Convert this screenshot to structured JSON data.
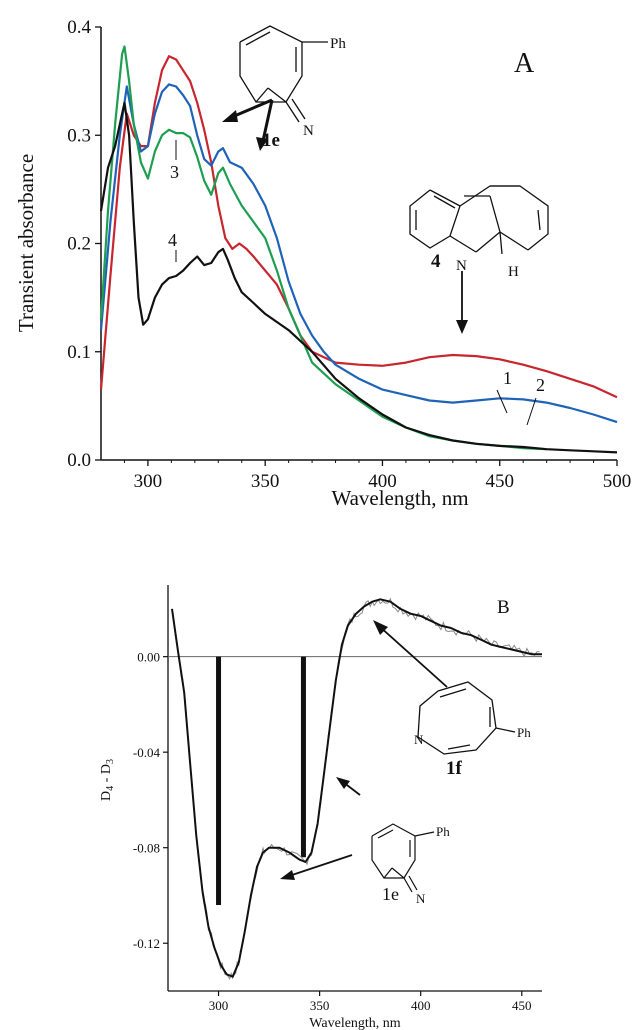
{
  "chart_data": [
    {
      "panel": "A",
      "type": "line",
      "panel_label": "A",
      "xlabel": "Wavelength, nm",
      "ylabel": "Transient absorbance",
      "xlim": [
        280,
        500
      ],
      "ylim": [
        0,
        0.4
      ],
      "x_ticks": [
        300,
        350,
        400,
        450,
        500
      ],
      "y_ticks": [
        0.0,
        0.1,
        0.2,
        0.3,
        0.4
      ],
      "y_tick_labels": [
        "0.0",
        "0.1",
        "0.2",
        "0.3",
        "0.4"
      ],
      "grid": false,
      "series": [
        {
          "label": "1",
          "color": "#c8262f",
          "points": [
            [
              280,
              0.065
            ],
            [
              284,
              0.17
            ],
            [
              288,
              0.27
            ],
            [
              291,
              0.32
            ],
            [
              294,
              0.3
            ],
            [
              297,
              0.29
            ],
            [
              300,
              0.29
            ],
            [
              303,
              0.33
            ],
            [
              306,
              0.36
            ],
            [
              309,
              0.373
            ],
            [
              312,
              0.37
            ],
            [
              315,
              0.36
            ],
            [
              318,
              0.35
            ],
            [
              321,
              0.33
            ],
            [
              324,
              0.305
            ],
            [
              327,
              0.275
            ],
            [
              330,
              0.235
            ],
            [
              333,
              0.205
            ],
            [
              336,
              0.195
            ],
            [
              339,
              0.2
            ],
            [
              342,
              0.195
            ],
            [
              345,
              0.188
            ],
            [
              350,
              0.175
            ],
            [
              355,
              0.162
            ],
            [
              360,
              0.14
            ],
            [
              365,
              0.115
            ],
            [
              370,
              0.1
            ],
            [
              380,
              0.09
            ],
            [
              390,
              0.088
            ],
            [
              400,
              0.087
            ],
            [
              410,
              0.09
            ],
            [
              420,
              0.095
            ],
            [
              430,
              0.097
            ],
            [
              440,
              0.096
            ],
            [
              450,
              0.093
            ],
            [
              460,
              0.088
            ],
            [
              470,
              0.082
            ],
            [
              480,
              0.075
            ],
            [
              490,
              0.068
            ],
            [
              500,
              0.058
            ]
          ]
        },
        {
          "label": "2",
          "color": "#1f63b8",
          "points": [
            [
              280,
              0.12
            ],
            [
              284,
              0.22
            ],
            [
              288,
              0.3
            ],
            [
              291,
              0.345
            ],
            [
              294,
              0.31
            ],
            [
              297,
              0.285
            ],
            [
              300,
              0.29
            ],
            [
              303,
              0.32
            ],
            [
              306,
              0.34
            ],
            [
              309,
              0.347
            ],
            [
              312,
              0.345
            ],
            [
              315,
              0.337
            ],
            [
              318,
              0.327
            ],
            [
              321,
              0.3
            ],
            [
              324,
              0.278
            ],
            [
              327,
              0.272
            ],
            [
              330,
              0.285
            ],
            [
              332,
              0.288
            ],
            [
              335,
              0.275
            ],
            [
              340,
              0.27
            ],
            [
              345,
              0.255
            ],
            [
              350,
              0.235
            ],
            [
              355,
              0.205
            ],
            [
              360,
              0.165
            ],
            [
              365,
              0.135
            ],
            [
              370,
              0.115
            ],
            [
              375,
              0.1
            ],
            [
              380,
              0.088
            ],
            [
              390,
              0.075
            ],
            [
              400,
              0.065
            ],
            [
              410,
              0.06
            ],
            [
              420,
              0.055
            ],
            [
              430,
              0.053
            ],
            [
              440,
              0.055
            ],
            [
              450,
              0.057
            ],
            [
              460,
              0.056
            ],
            [
              470,
              0.053
            ],
            [
              480,
              0.048
            ],
            [
              490,
              0.042
            ],
            [
              500,
              0.035
            ]
          ]
        },
        {
          "label": "3",
          "color": "#1e9e50",
          "points": [
            [
              280,
              0.13
            ],
            [
              283,
              0.23
            ],
            [
              286,
              0.31
            ],
            [
              289,
              0.375
            ],
            [
              290,
              0.382
            ],
            [
              292,
              0.35
            ],
            [
              294,
              0.31
            ],
            [
              297,
              0.275
            ],
            [
              300,
              0.26
            ],
            [
              303,
              0.285
            ],
            [
              306,
              0.3
            ],
            [
              309,
              0.305
            ],
            [
              312,
              0.302
            ],
            [
              315,
              0.302
            ],
            [
              318,
              0.298
            ],
            [
              321,
              0.28
            ],
            [
              324,
              0.258
            ],
            [
              327,
              0.245
            ],
            [
              330,
              0.265
            ],
            [
              332,
              0.27
            ],
            [
              335,
              0.255
            ],
            [
              340,
              0.235
            ],
            [
              345,
              0.22
            ],
            [
              350,
              0.205
            ],
            [
              355,
              0.175
            ],
            [
              360,
              0.14
            ],
            [
              365,
              0.115
            ],
            [
              370,
              0.09
            ],
            [
              380,
              0.07
            ],
            [
              390,
              0.055
            ],
            [
              400,
              0.04
            ],
            [
              410,
              0.03
            ],
            [
              420,
              0.022
            ],
            [
              430,
              0.018
            ],
            [
              440,
              0.015
            ],
            [
              450,
              0.013
            ],
            [
              460,
              0.011
            ],
            [
              470,
              0.01
            ]
          ]
        },
        {
          "label": "4",
          "color": "#111111",
          "points": [
            [
              280,
              0.23
            ],
            [
              283,
              0.27
            ],
            [
              286,
              0.29
            ],
            [
              288,
              0.31
            ],
            [
              290,
              0.33
            ],
            [
              292,
              0.3
            ],
            [
              294,
              0.22
            ],
            [
              296,
              0.15
            ],
            [
              298,
              0.125
            ],
            [
              300,
              0.13
            ],
            [
              303,
              0.15
            ],
            [
              306,
              0.162
            ],
            [
              309,
              0.168
            ],
            [
              312,
              0.17
            ],
            [
              315,
              0.175
            ],
            [
              318,
              0.182
            ],
            [
              321,
              0.188
            ],
            [
              324,
              0.18
            ],
            [
              327,
              0.182
            ],
            [
              330,
              0.192
            ],
            [
              332,
              0.195
            ],
            [
              334,
              0.185
            ],
            [
              337,
              0.168
            ],
            [
              340,
              0.155
            ],
            [
              345,
              0.145
            ],
            [
              350,
              0.135
            ],
            [
              360,
              0.12
            ],
            [
              370,
              0.1
            ],
            [
              380,
              0.075
            ],
            [
              390,
              0.057
            ],
            [
              400,
              0.042
            ],
            [
              410,
              0.03
            ],
            [
              420,
              0.023
            ],
            [
              430,
              0.018
            ],
            [
              440,
              0.015
            ],
            [
              450,
              0.013
            ],
            [
              460,
              0.012
            ],
            [
              470,
              0.01
            ],
            [
              480,
              0.009
            ],
            [
              490,
              0.008
            ],
            [
              500,
              0.007
            ]
          ]
        }
      ],
      "annotations": [
        {
          "text": "1e",
          "target": "molecule label"
        },
        {
          "text": "4",
          "target": "molecule label"
        },
        {
          "text": "Ph",
          "target": "substituent"
        },
        {
          "text": "N",
          "target": "atom"
        },
        {
          "text": "H",
          "target": "atom"
        }
      ]
    },
    {
      "panel": "B",
      "type": "line",
      "panel_label": "B",
      "xlabel": "Wavelength, nm",
      "ylabel": "D4 - D3",
      "xlim": [
        275,
        460
      ],
      "ylim": [
        -0.14,
        0.03
      ],
      "x_ticks": [
        300,
        350,
        400,
        450
      ],
      "y_ticks": [
        0.0,
        -0.04,
        -0.08,
        -0.12
      ],
      "y_tick_labels": [
        "0.00",
        "-0.04",
        "-0.08",
        "-0.12"
      ],
      "grid": false,
      "zero_line": true,
      "series": [
        {
          "label": "smoothed",
          "color": "#111111",
          "points": [
            [
              277,
              0.02
            ],
            [
              280,
              0.002
            ],
            [
              283,
              -0.015
            ],
            [
              286,
              -0.045
            ],
            [
              289,
              -0.075
            ],
            [
              292,
              -0.098
            ],
            [
              295,
              -0.113
            ],
            [
              298,
              -0.122
            ],
            [
              301,
              -0.129
            ],
            [
              304,
              -0.133
            ],
            [
              307,
              -0.134
            ],
            [
              310,
              -0.128
            ],
            [
              313,
              -0.115
            ],
            [
              316,
              -0.1
            ],
            [
              319,
              -0.088
            ],
            [
              322,
              -0.082
            ],
            [
              325,
              -0.08
            ],
            [
              330,
              -0.08
            ],
            [
              335,
              -0.082
            ],
            [
              340,
              -0.085
            ],
            [
              343,
              -0.086
            ],
            [
              346,
              -0.082
            ],
            [
              349,
              -0.07
            ],
            [
              352,
              -0.05
            ],
            [
              355,
              -0.03
            ],
            [
              358,
              -0.01
            ],
            [
              361,
              0.005
            ],
            [
              364,
              0.013
            ],
            [
              368,
              0.018
            ],
            [
              372,
              0.021
            ],
            [
              376,
              0.023
            ],
            [
              380,
              0.024
            ],
            [
              385,
              0.023
            ],
            [
              390,
              0.02
            ],
            [
              395,
              0.018
            ],
            [
              400,
              0.017
            ],
            [
              405,
              0.015
            ],
            [
              410,
              0.013
            ],
            [
              415,
              0.012
            ],
            [
              420,
              0.01
            ],
            [
              425,
              0.009
            ],
            [
              430,
              0.007
            ],
            [
              435,
              0.005
            ],
            [
              440,
              0.004
            ],
            [
              445,
              0.003
            ],
            [
              450,
              0.002
            ],
            [
              455,
              0.001
            ],
            [
              460,
              0.001
            ]
          ]
        }
      ],
      "stick_spectrum": [
        {
          "x": 300,
          "value": -0.104
        },
        {
          "x": 342,
          "value": -0.084
        }
      ],
      "annotations": [
        {
          "text": "1f",
          "target": "molecule label"
        },
        {
          "text": "1e",
          "target": "molecule label"
        },
        {
          "text": "Ph",
          "target": "substituent"
        },
        {
          "text": "N",
          "target": "atom"
        }
      ]
    }
  ],
  "panel_a": {
    "letter": "A",
    "xlabel": "Wavelength, nm",
    "ylabel": "Transient absorbance",
    "x_tick_labels": [
      "300",
      "350",
      "400",
      "450",
      "500"
    ],
    "y_tick_labels": [
      "0.0",
      "0.1",
      "0.2",
      "0.3",
      "0.4"
    ],
    "curve_labels": [
      "1",
      "2",
      "3",
      "4"
    ],
    "mol_1e": {
      "label": "1e",
      "ph": "Ph",
      "n": "N"
    },
    "mol_4": {
      "label": "4",
      "n": "N",
      "h": "H"
    }
  },
  "panel_b": {
    "letter": "B",
    "xlabel": "Wavelength, nm",
    "ylabel_main": "D",
    "ylabel_sub1": "4",
    "ylabel_mid": " - D",
    "ylabel_sub2": "3",
    "x_tick_labels": [
      "300",
      "350",
      "400",
      "450"
    ],
    "y_tick_labels": [
      "0.00",
      "-0.04",
      "-0.08",
      "-0.12"
    ],
    "mol_1f": {
      "label": "1f",
      "ph": "Ph",
      "n": "N"
    },
    "mol_1e": {
      "label": "1e",
      "ph": "Ph",
      "n": "N"
    }
  }
}
